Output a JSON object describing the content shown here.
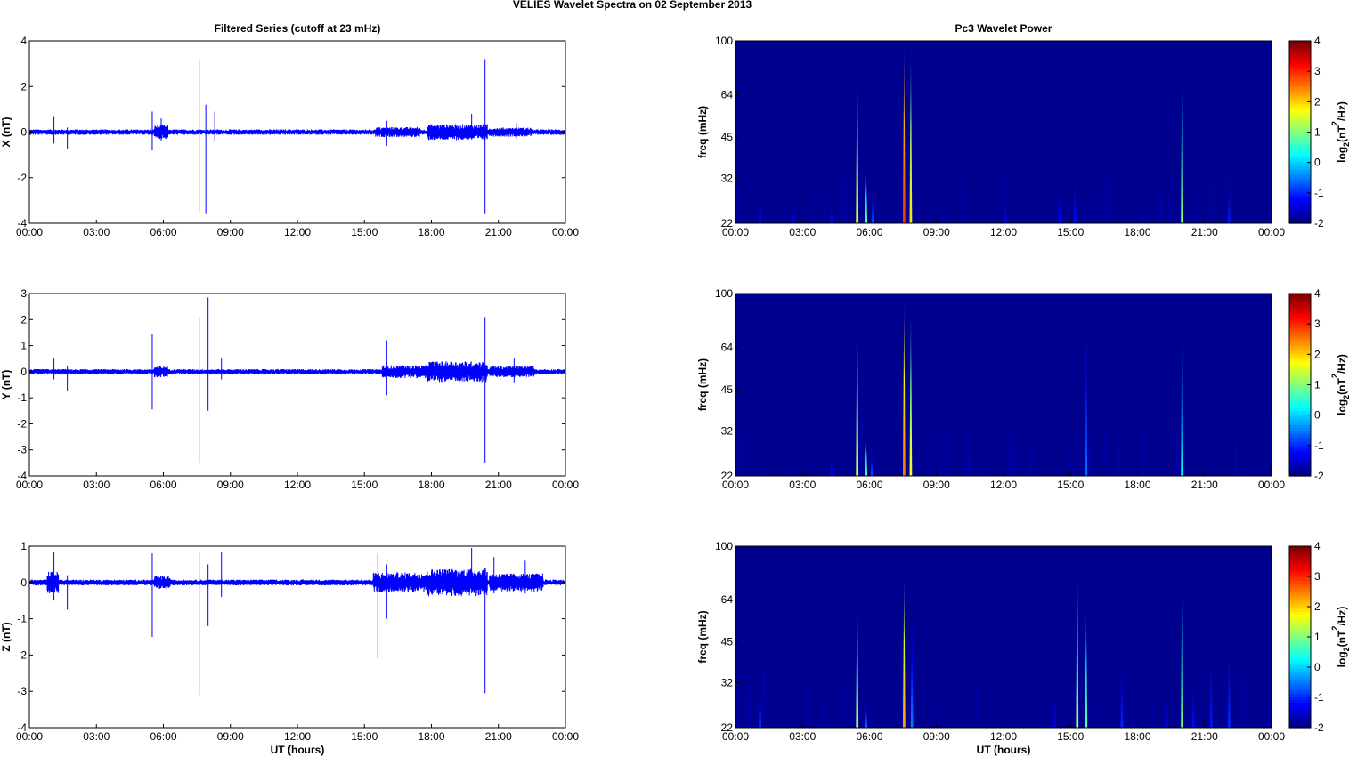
{
  "figure": {
    "suptitle": "VELIES Wavelet Spectra on 02 September 2013",
    "left_title": "Filtered Series (cutoff at 23 mHz)",
    "right_title": "Pc3 Wavelet Power",
    "xlabel": "UT (hours)"
  },
  "colors": {
    "series": "#0000ff",
    "spectrum_background": "#00008f",
    "axes": "#000000"
  },
  "chart_data": [
    {
      "type": "line",
      "title": "Filtered Series (cutoff at 23 mHz)",
      "xlabel": "",
      "ylabel": "X (nT)",
      "xlim": [
        0,
        24
      ],
      "ylim": [
        -4,
        4
      ],
      "xticks": [
        "00:00",
        "03:00",
        "06:00",
        "09:00",
        "12:00",
        "15:00",
        "18:00",
        "21:00",
        "00:00"
      ],
      "yticks": [
        "-4",
        "-2",
        "0",
        "2",
        "4"
      ],
      "noise_envelope": [
        {
          "start": 0,
          "end": 24,
          "amp": 0.12
        },
        {
          "start": 5.6,
          "end": 6.2,
          "amp": 0.3
        },
        {
          "start": 15.5,
          "end": 17.5,
          "amp": 0.22
        },
        {
          "start": 17.8,
          "end": 20.5,
          "amp": 0.35
        },
        {
          "start": 20.6,
          "end": 22.5,
          "amp": 0.2
        }
      ],
      "spikes": [
        {
          "t": 1.1,
          "lo": -0.5,
          "hi": 0.7
        },
        {
          "t": 1.7,
          "lo": -0.75,
          "hi": 0.2
        },
        {
          "t": 5.5,
          "lo": -0.8,
          "hi": 0.9
        },
        {
          "t": 5.9,
          "lo": -0.4,
          "hi": 0.6
        },
        {
          "t": 7.6,
          "lo": -3.5,
          "hi": 3.2
        },
        {
          "t": 7.9,
          "lo": -3.6,
          "hi": 1.2
        },
        {
          "t": 8.3,
          "lo": -0.4,
          "hi": 0.9
        },
        {
          "t": 16.0,
          "lo": -0.6,
          "hi": 0.5
        },
        {
          "t": 19.8,
          "lo": -0.3,
          "hi": 0.8
        },
        {
          "t": 20.4,
          "lo": -3.6,
          "hi": 3.2
        },
        {
          "t": 21.8,
          "lo": -0.3,
          "hi": 0.4
        }
      ]
    },
    {
      "type": "heatmap",
      "title": "Pc3 Wavelet Power",
      "xlabel": "",
      "ylabel": "freq (mHz)",
      "xlim": [
        0,
        24
      ],
      "ylim": [
        22,
        100
      ],
      "yscale": "log",
      "xticks": [
        "00:00",
        "03:00",
        "06:00",
        "09:00",
        "12:00",
        "15:00",
        "18:00",
        "21:00",
        "00:00"
      ],
      "yticks": [
        "22",
        "32",
        "45",
        "64",
        "100"
      ],
      "colorbar_label": "log2(nT2/Hz)",
      "colorbar_ticks": [
        "-2",
        "-1",
        "0",
        "1",
        "2",
        "3",
        "4"
      ],
      "clim": [
        -2,
        4
      ],
      "streaks": [
        {
          "t": 1.1,
          "fmax": 34,
          "val": -1.2
        },
        {
          "t": 2.6,
          "fmax": 28,
          "val": -1.3
        },
        {
          "t": 4.3,
          "fmax": 28,
          "val": -1.2
        },
        {
          "t": 5.45,
          "fmax": 95,
          "val": 1.6
        },
        {
          "t": 5.85,
          "fmax": 34,
          "val": 0.8
        },
        {
          "t": 6.15,
          "fmax": 30,
          "val": -0.8
        },
        {
          "t": 7.55,
          "fmax": 100,
          "val": 3.0
        },
        {
          "t": 7.85,
          "fmax": 95,
          "val": 1.9
        },
        {
          "t": 12.1,
          "fmax": 28,
          "val": -1.2
        },
        {
          "t": 14.5,
          "fmax": 40,
          "val": -1.3
        },
        {
          "t": 15.2,
          "fmax": 45,
          "val": -1.2
        },
        {
          "t": 20.0,
          "fmax": 100,
          "val": 1.1
        },
        {
          "t": 22.1,
          "fmax": 36,
          "val": -1.1
        }
      ]
    },
    {
      "type": "line",
      "title": "",
      "xlabel": "",
      "ylabel": "Y (nT)",
      "xlim": [
        0,
        24
      ],
      "ylim": [
        -4,
        3
      ],
      "xticks": [
        "00:00",
        "03:00",
        "06:00",
        "09:00",
        "12:00",
        "15:00",
        "18:00",
        "21:00",
        "00:00"
      ],
      "yticks": [
        "-4",
        "-3",
        "-2",
        "-1",
        "0",
        "1",
        "2",
        "3"
      ],
      "noise_envelope": [
        {
          "start": 0,
          "end": 24,
          "amp": 0.1
        },
        {
          "start": 5.6,
          "end": 6.2,
          "amp": 0.22
        },
        {
          "start": 15.8,
          "end": 17.8,
          "amp": 0.25
        },
        {
          "start": 17.8,
          "end": 20.5,
          "amp": 0.4
        },
        {
          "start": 20.6,
          "end": 22.6,
          "amp": 0.22
        }
      ],
      "spikes": [
        {
          "t": 1.1,
          "lo": -0.3,
          "hi": 0.5
        },
        {
          "t": 1.7,
          "lo": -0.75,
          "hi": 0.2
        },
        {
          "t": 5.5,
          "lo": -1.45,
          "hi": 1.45
        },
        {
          "t": 7.6,
          "lo": -3.5,
          "hi": 2.1
        },
        {
          "t": 8.0,
          "lo": -1.5,
          "hi": 2.85
        },
        {
          "t": 8.6,
          "lo": -0.3,
          "hi": 0.5
        },
        {
          "t": 16.0,
          "lo": -0.9,
          "hi": 1.2
        },
        {
          "t": 20.4,
          "lo": -3.5,
          "hi": 2.1
        },
        {
          "t": 21.7,
          "lo": -0.4,
          "hi": 0.5
        }
      ]
    },
    {
      "type": "heatmap",
      "title": "",
      "xlabel": "",
      "ylabel": "freq (mHz)",
      "xlim": [
        0,
        24
      ],
      "ylim": [
        22,
        100
      ],
      "yscale": "log",
      "xticks": [
        "00:00",
        "03:00",
        "06:00",
        "09:00",
        "12:00",
        "15:00",
        "18:00",
        "21:00",
        "00:00"
      ],
      "yticks": [
        "22",
        "32",
        "45",
        "64",
        "100"
      ],
      "colorbar_label": "log2(nT2/Hz)",
      "colorbar_ticks": [
        "-2",
        "-1",
        "0",
        "1",
        "2",
        "3",
        "4"
      ],
      "clim": [
        -2,
        4
      ],
      "streaks": [
        {
          "t": 4.3,
          "fmax": 30,
          "val": -1.3
        },
        {
          "t": 5.45,
          "fmax": 98,
          "val": 1.5
        },
        {
          "t": 5.85,
          "fmax": 30,
          "val": 0.8
        },
        {
          "t": 6.1,
          "fmax": 28,
          "val": -0.8
        },
        {
          "t": 7.55,
          "fmax": 98,
          "val": 2.6
        },
        {
          "t": 7.85,
          "fmax": 90,
          "val": 1.7
        },
        {
          "t": 15.7,
          "fmax": 95,
          "val": -0.6
        },
        {
          "t": 20.0,
          "fmax": 100,
          "val": 0.3
        }
      ]
    },
    {
      "type": "line",
      "title": "",
      "xlabel": "UT (hours)",
      "ylabel": "Z (nT)",
      "xlim": [
        0,
        24
      ],
      "ylim": [
        -4,
        1
      ],
      "xticks": [
        "00:00",
        "03:00",
        "06:00",
        "09:00",
        "12:00",
        "15:00",
        "18:00",
        "21:00",
        "00:00"
      ],
      "yticks": [
        "-4",
        "-3",
        "-2",
        "-1",
        "0",
        "1"
      ],
      "noise_envelope": [
        {
          "start": 0,
          "end": 24,
          "amp": 0.08
        },
        {
          "start": 0.8,
          "end": 1.3,
          "amp": 0.3
        },
        {
          "start": 5.6,
          "end": 6.3,
          "amp": 0.18
        },
        {
          "start": 15.4,
          "end": 17.8,
          "amp": 0.28
        },
        {
          "start": 17.8,
          "end": 20.5,
          "amp": 0.38
        },
        {
          "start": 20.6,
          "end": 23.0,
          "amp": 0.25
        }
      ],
      "spikes": [
        {
          "t": 1.1,
          "lo": -0.5,
          "hi": 0.85
        },
        {
          "t": 1.7,
          "lo": -0.75,
          "hi": 0.2
        },
        {
          "t": 5.5,
          "lo": -1.5,
          "hi": 0.8
        },
        {
          "t": 7.6,
          "lo": -3.1,
          "hi": 0.85
        },
        {
          "t": 8.0,
          "lo": -1.2,
          "hi": 0.5
        },
        {
          "t": 8.6,
          "lo": -0.4,
          "hi": 0.85
        },
        {
          "t": 15.6,
          "lo": -2.1,
          "hi": 0.8
        },
        {
          "t": 16.0,
          "lo": -1.0,
          "hi": 0.5
        },
        {
          "t": 19.8,
          "lo": -0.3,
          "hi": 0.95
        },
        {
          "t": 20.4,
          "lo": -3.05,
          "hi": 0.4
        },
        {
          "t": 20.8,
          "lo": -0.3,
          "hi": 0.7
        },
        {
          "t": 22.2,
          "lo": -0.3,
          "hi": 0.6
        }
      ]
    },
    {
      "type": "heatmap",
      "title": "",
      "xlabel": "UT (hours)",
      "ylabel": "freq (mHz)",
      "xlim": [
        0,
        24
      ],
      "ylim": [
        22,
        100
      ],
      "yscale": "log",
      "xticks": [
        "00:00",
        "03:00",
        "06:00",
        "09:00",
        "12:00",
        "15:00",
        "18:00",
        "21:00",
        "00:00"
      ],
      "yticks": [
        "22",
        "32",
        "45",
        "64",
        "100"
      ],
      "colorbar_label": "log2(nT2/Hz)",
      "colorbar_ticks": [
        "-2",
        "-1",
        "0",
        "1",
        "2",
        "3",
        "4"
      ],
      "clim": [
        -2,
        4
      ],
      "streaks": [
        {
          "t": 1.1,
          "fmax": 34,
          "val": -0.9
        },
        {
          "t": 5.45,
          "fmax": 75,
          "val": 1.2
        },
        {
          "t": 5.85,
          "fmax": 28,
          "val": -0.6
        },
        {
          "t": 7.55,
          "fmax": 80,
          "val": 2.3
        },
        {
          "t": 7.9,
          "fmax": 60,
          "val": -0.5
        },
        {
          "t": 14.3,
          "fmax": 40,
          "val": -1.3
        },
        {
          "t": 15.3,
          "fmax": 100,
          "val": 1.3
        },
        {
          "t": 15.7,
          "fmax": 60,
          "val": 0.8
        },
        {
          "t": 17.3,
          "fmax": 40,
          "val": -1.0
        },
        {
          "t": 19.3,
          "fmax": 36,
          "val": -1.2
        },
        {
          "t": 20.0,
          "fmax": 98,
          "val": 1.0
        },
        {
          "t": 20.5,
          "fmax": 45,
          "val": -1.2
        },
        {
          "t": 21.3,
          "fmax": 60,
          "val": -1.1
        },
        {
          "t": 22.1,
          "fmax": 60,
          "val": -1.0
        }
      ]
    }
  ]
}
